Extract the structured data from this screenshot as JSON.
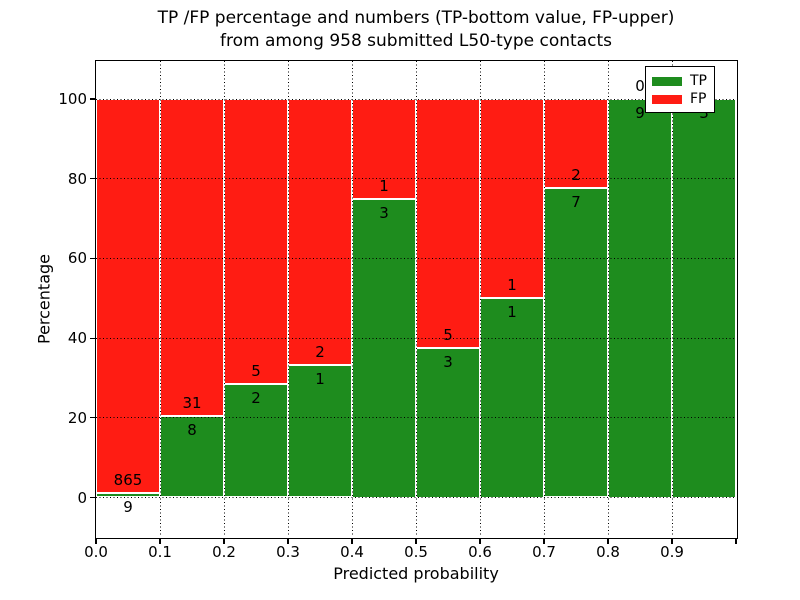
{
  "title": {
    "line1": "TP /FP percentage and numbers (TP-bottom value, FP-upper)",
    "line2": "from among 958 submitted L50-type contacts"
  },
  "x_axis": {
    "label": "Predicted probability",
    "tick_labels": [
      "0.0",
      "0.1",
      "0.2",
      "0.3",
      "0.4",
      "0.5",
      "0.6",
      "0.7",
      "0.8",
      "0.9"
    ]
  },
  "y_axis": {
    "label": "Percentage",
    "tick_labels": [
      "0",
      "20",
      "40",
      "60",
      "80",
      "100"
    ],
    "tick_values": [
      0,
      20,
      40,
      60,
      80,
      100
    ]
  },
  "legend": {
    "items": [
      {
        "label": "TP",
        "color": "#1e8c1e"
      },
      {
        "label": "FP",
        "color": "#ff1c13"
      }
    ],
    "position": "upper right"
  },
  "colors": {
    "tp_green": "#1e8c1e",
    "fp_red": "#ff1c13",
    "bar_edge": "#ffffff",
    "text": "#000000",
    "background": "#ffffff"
  },
  "chart_data": {
    "type": "bar",
    "variant": "stacked-100-percent",
    "title": "TP /FP percentage and numbers (TP-bottom value, FP-upper) from among 958 submitted L50-type contacts",
    "xlabel": "Predicted probability",
    "ylabel": "Percentage",
    "xlim": [
      0.0,
      1.0
    ],
    "ylim": [
      0,
      100
    ],
    "grid": "dotted, drawn over bars",
    "legend_position": "upper right",
    "bin_width": 0.1,
    "bin_starts": [
      0.0,
      0.1,
      0.2,
      0.3,
      0.4,
      0.5,
      0.6,
      0.7,
      0.8,
      0.9
    ],
    "series": [
      {
        "name": "TP",
        "position": "bottom",
        "color": "#1e8c1e",
        "counts": [
          9,
          8,
          2,
          1,
          3,
          3,
          1,
          7,
          9,
          3
        ]
      },
      {
        "name": "FP",
        "position": "top",
        "color": "#ff1c13",
        "counts": [
          865,
          31,
          5,
          2,
          1,
          5,
          1,
          2,
          0,
          0
        ]
      }
    ],
    "tp_percent_of_bin": [
      1.03,
      20.51,
      28.57,
      33.33,
      75.0,
      37.5,
      50.0,
      77.78,
      100.0,
      100.0
    ],
    "total_contacts": 958
  }
}
